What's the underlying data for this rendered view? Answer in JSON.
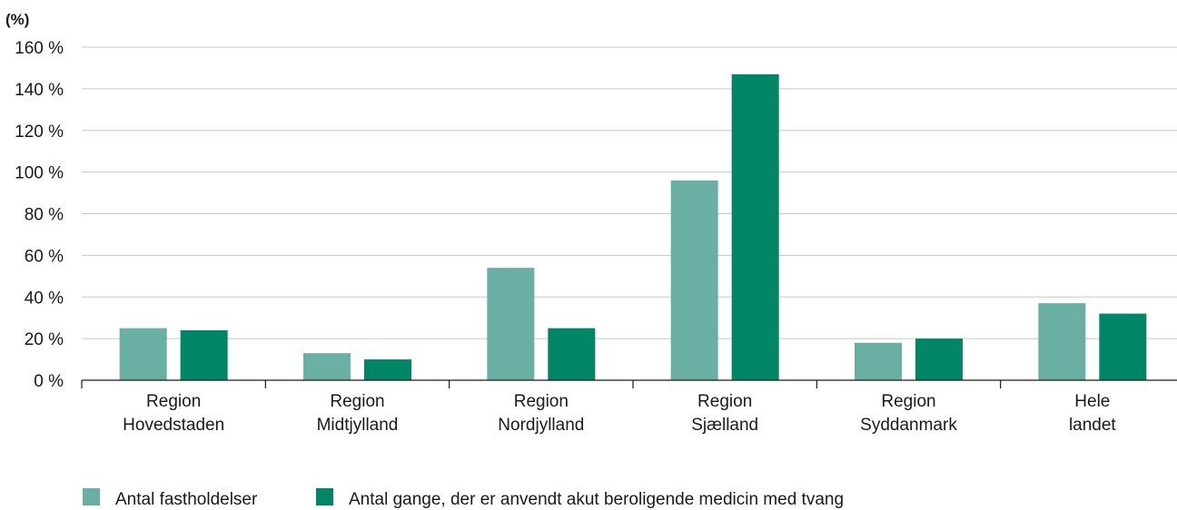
{
  "chart_data": {
    "type": "bar",
    "y_unit_label": "(%)",
    "categories": [
      [
        "Region",
        "Hovedstaden"
      ],
      [
        "Region",
        "Midtjylland"
      ],
      [
        "Region",
        "Nordjylland"
      ],
      [
        "Region",
        "Sjælland"
      ],
      [
        "Region",
        "Syddanmark"
      ],
      [
        "Hele",
        "landet"
      ]
    ],
    "series": [
      {
        "name": "Antal fastholdelser",
        "color": "#6aafa3",
        "values": [
          25,
          13,
          54,
          96,
          18,
          37
        ]
      },
      {
        "name": "Antal gange, der er anvendt akut beroligende medicin med tvang",
        "color": "#008566",
        "values": [
          24,
          10,
          25,
          147,
          20,
          32
        ]
      }
    ],
    "ylim": [
      0,
      160
    ],
    "yticks": [
      0,
      20,
      40,
      60,
      80,
      100,
      120,
      140,
      160
    ],
    "ytick_labels": [
      "0 %",
      "20 %",
      "40 %",
      "60 %",
      "80 %",
      "100 %",
      "120 %",
      "140 %",
      "160 %"
    ],
    "grid": true,
    "legend": "bottom-left"
  }
}
